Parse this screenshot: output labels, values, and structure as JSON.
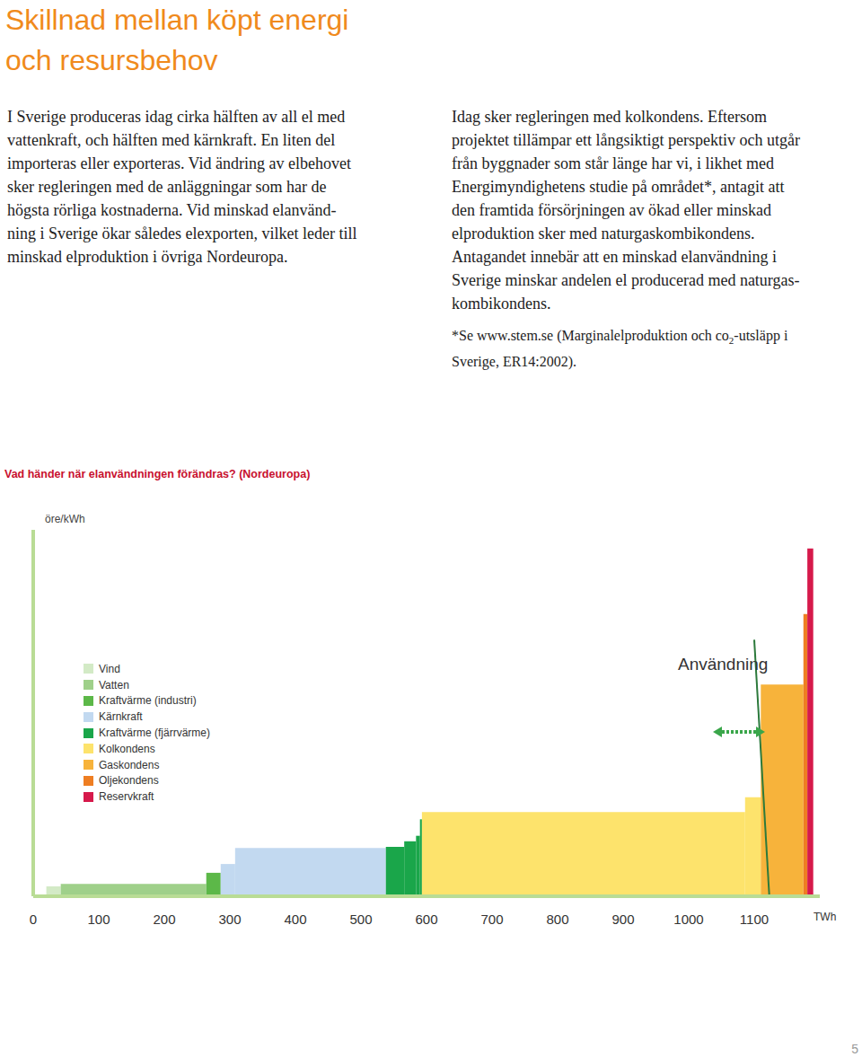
{
  "title": [
    "Skillnad mellan köpt energi",
    "och resursbehov"
  ],
  "left_column": [
    "I Sverige produceras idag cirka hälften av all el med",
    "vattenkraft, och hälften med kärnkraft. En liten del",
    "importeras eller exporteras. Vid ändring av elbehovet",
    "sker regleringen med de anläggningar som har de",
    "högsta rörliga kostnaderna. Vid minskad elanvänd-",
    "ning i Sverige ökar således elexporten, vilket leder till",
    "minskad elproduktion i övriga Nordeuropa."
  ],
  "right_column": [
    "Idag sker regleringen med kolkondens. Eftersom",
    "projektet tillämpar ett långsiktigt perspektiv och utgår",
    "från byggnader som står länge har vi, i likhet med",
    "Energimyndighetens studie på området*, antagit att",
    "den framtida försörjningen av ökad eller minskad",
    "elproduktion sker med naturgaskombikondens.",
    "Antagandet innebär att en minskad elanvändning i",
    "Sverige minskar andelen el producerad med naturgas-",
    "kombikondens."
  ],
  "footnote": {
    "line1_before": "*Se www.stem.se (Marginalelproduktion och co",
    "subscript": "2",
    "line1_after": "-utsläpp i",
    "line2": "Sverige, ER14:2002)."
  },
  "page_number": "5",
  "chart_data": {
    "type": "step_area",
    "title": "Vad händer när elanvändningen förändras? (Nordeuropa)",
    "y_label": "öre/kWh",
    "x_label": "TWh",
    "xlim": [
      0,
      1200
    ],
    "xticks": [
      0,
      100,
      200,
      300,
      400,
      500,
      600,
      700,
      800,
      900,
      1000,
      1100
    ],
    "ylim": [
      0,
      100
    ],
    "tick_labels": "x",
    "series": [
      {
        "name": "Vind",
        "color": "#d3eac6",
        "ranges": [
          [
            20,
            42
          ]
        ],
        "values": [
          2.7
        ]
      },
      {
        "name": "Vatten",
        "color": "#9fd08a",
        "ranges": [
          [
            42,
            264
          ]
        ],
        "values": [
          3.4
        ]
      },
      {
        "name": "Kraftvärme (industri)",
        "color": "#5cb848",
        "ranges": [
          [
            264,
            286
          ]
        ],
        "values": [
          6.4
        ]
      },
      {
        "name": "Kärnkraft",
        "color": "#c2d9f0",
        "ranges": [
          [
            286,
            308
          ],
          [
            308,
            538
          ]
        ],
        "values": [
          8.8,
          13.2
        ]
      },
      {
        "name": "Kraftvärme (fjärrvärme)",
        "color": "#1aa64a",
        "ranges": [
          [
            538,
            566
          ],
          [
            566,
            584
          ],
          [
            584,
            590
          ],
          [
            590,
            593
          ]
        ],
        "values": [
          13.5,
          15,
          16.5,
          21
        ]
      },
      {
        "name": "Kolkondens",
        "color": "#fde36c",
        "ranges": [
          [
            593,
            1086
          ],
          [
            1086,
            1110
          ]
        ],
        "values": [
          23,
          27
        ]
      },
      {
        "name": "Gaskondens",
        "color": "#f7b33b",
        "ranges": [
          [
            1110,
            1175
          ]
        ],
        "values": [
          57.8
        ]
      },
      {
        "name": "Oljekondens",
        "color": "#ee7e22",
        "ranges": [
          [
            1175,
            1181
          ]
        ],
        "values": [
          77
        ]
      },
      {
        "name": "Reservkraft",
        "color": "#d6194b",
        "ranges": [
          [
            1181,
            1190
          ]
        ],
        "values": [
          94.9
        ]
      }
    ],
    "demand": {
      "name": "Användning",
      "color": "#2d7a3c",
      "x": [
        1100,
        1123
      ],
      "values": [
        70,
        0
      ]
    }
  }
}
